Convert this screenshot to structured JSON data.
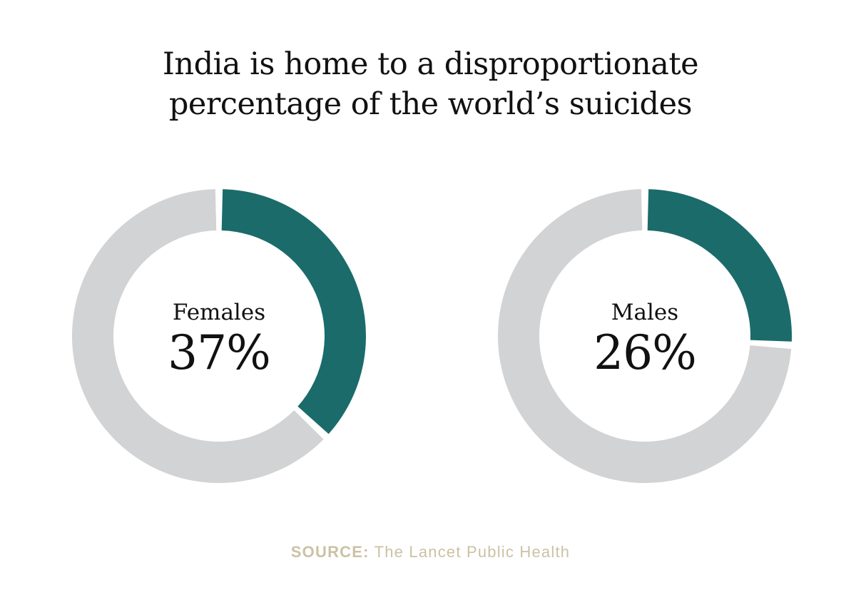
{
  "chart_data": {
    "type": "pie",
    "title_line1_before": "India is home to a ",
    "title_highlight": "disproportionate",
    "title_line2": "percentage of the world’s suicides",
    "series": [
      {
        "name": "Females",
        "value": 37,
        "label": "37%"
      },
      {
        "name": "Males",
        "value": 26,
        "label": "26%"
      }
    ],
    "source_label": "SOURCE:",
    "source_text": "The Lancet Public Health"
  },
  "colors": {
    "fill": "#1b6b6b",
    "track": "#d2d3d4",
    "highlight": "#f2c417",
    "source": "#cbc2a4"
  }
}
